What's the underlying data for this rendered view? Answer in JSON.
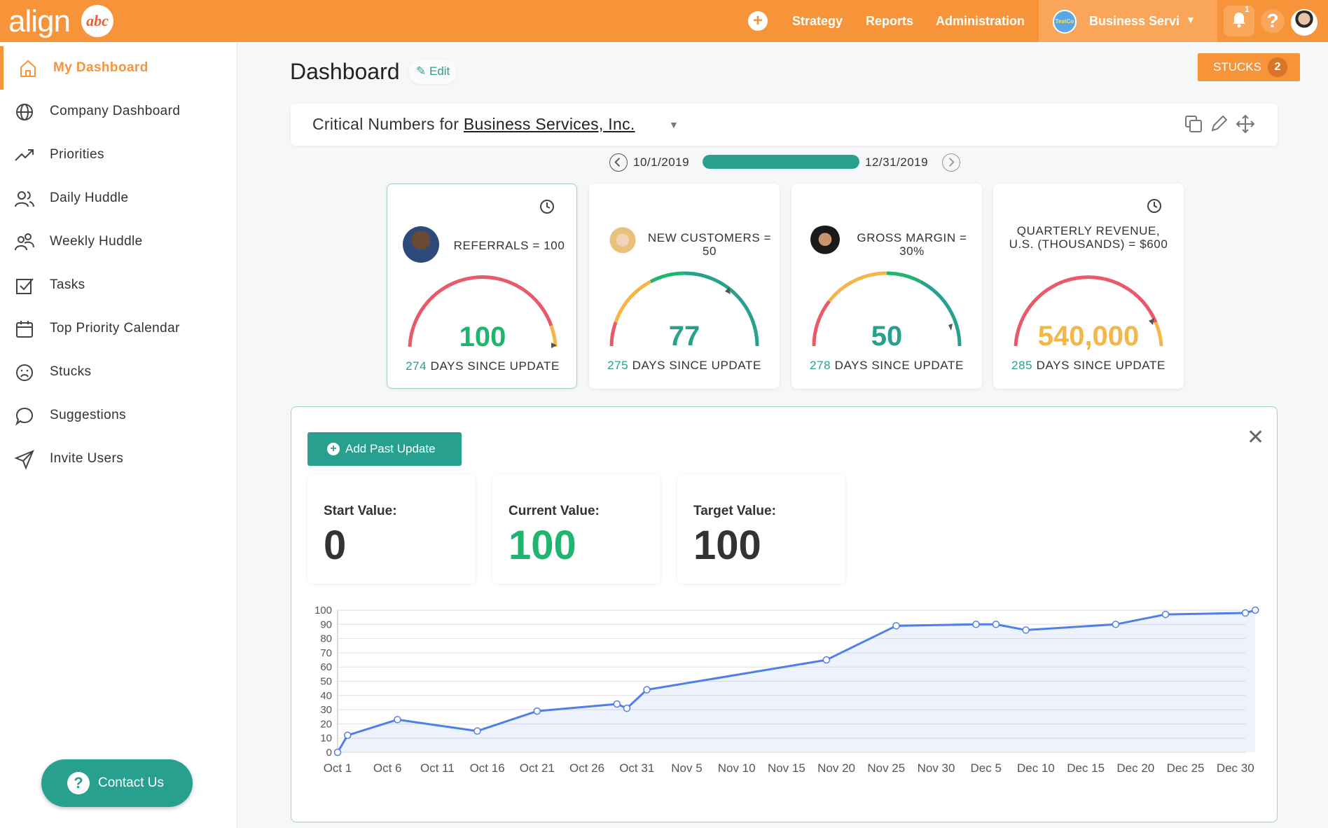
{
  "topbar": {
    "logo_text": "align",
    "logo_mark": "abc",
    "add_icon": "plus-circle-icon",
    "nav": [
      "Strategy",
      "Reports",
      "Administration"
    ],
    "company_logo_text": "TestCo",
    "company_name": "Business Services, Inc.",
    "notification_count": "1",
    "help_label": "?",
    "brand_color": "#f7943a"
  },
  "sidebar": {
    "items": [
      {
        "label": "My Dashboard",
        "icon": "home-icon",
        "active": true
      },
      {
        "label": "Company Dashboard",
        "icon": "globe-icon"
      },
      {
        "label": "Priorities",
        "icon": "trending-up-icon"
      },
      {
        "label": "Daily Huddle",
        "icon": "users-icon"
      },
      {
        "label": "Weekly Huddle",
        "icon": "users-group-icon"
      },
      {
        "label": "Tasks",
        "icon": "checkbox-icon"
      },
      {
        "label": "Top Priority Calendar",
        "icon": "calendar-icon"
      },
      {
        "label": "Stucks",
        "icon": "frown-icon"
      },
      {
        "label": "Suggestions",
        "icon": "chat-bubble-icon"
      },
      {
        "label": "Invite Users",
        "icon": "send-icon"
      }
    ],
    "contact_label": "Contact Us"
  },
  "header": {
    "title": "Dashboard",
    "edit_label": "Edit",
    "stucks_label": "STUCKS",
    "stucks_count": "2"
  },
  "critical_numbers": {
    "prefix": "Critical Numbers for ",
    "company": "Business Services, Inc.",
    "period_start": "10/1/2019",
    "period_end": "12/31/2019",
    "period_progress": 1.0
  },
  "kpis": [
    {
      "title": "REFERRALS = 100",
      "value": "100",
      "value_color": "#1fb56e",
      "days": "274",
      "footer_suffix": " DAYS SINCE UPDATE",
      "has_clock": true,
      "selected": true
    },
    {
      "title": "NEW CUSTOMERS = 50",
      "value": "77",
      "value_color": "#27a08e",
      "days": "275",
      "footer_suffix": " DAYS SINCE UPDATE",
      "has_clock": false
    },
    {
      "title": "GROSS MARGIN = 30%",
      "value": "50",
      "value_color": "#27a08e",
      "days": "278",
      "footer_suffix": " DAYS SINCE UPDATE",
      "has_clock": false
    },
    {
      "title": "QUARTERLY REVENUE, U.S. (THOUSANDS) = $600",
      "value": "540,000",
      "value_color": "#f5b547",
      "days": "285",
      "footer_suffix": " DAYS SINCE UPDATE",
      "has_clock": true
    }
  ],
  "detail": {
    "add_label": "Add Past Update",
    "start_label": "Start Value:",
    "start_value": "0",
    "current_label": "Current Value:",
    "current_value": "100",
    "target_label": "Target Value:",
    "target_value": "100"
  },
  "chart_data": {
    "type": "area",
    "title": "",
    "xlabel": "",
    "ylabel": "",
    "ylim": [
      0,
      100
    ],
    "yticks": [
      0,
      10,
      20,
      30,
      40,
      50,
      60,
      70,
      80,
      90,
      100
    ],
    "xticks": [
      "Oct 1",
      "Oct 6",
      "Oct 11",
      "Oct 16",
      "Oct 21",
      "Oct 26",
      "Oct 31",
      "Nov 5",
      "Nov 10",
      "Nov 15",
      "Nov 20",
      "Nov 25",
      "Nov 30",
      "Dec 5",
      "Dec 10",
      "Dec 15",
      "Dec 20",
      "Dec 25",
      "Dec 30"
    ],
    "grid": true,
    "series": [
      {
        "x": [
          "Oct 1",
          "Oct 2",
          "Oct 7",
          "Oct 15",
          "Oct 21",
          "Oct 29",
          "Oct 30",
          "Nov 1",
          "Nov 19",
          "Nov 26",
          "Dec 4",
          "Dec 6",
          "Dec 9",
          "Dec 18",
          "Dec 23",
          "Dec 31",
          "Jan 1"
        ],
        "y": [
          0,
          12,
          23,
          15,
          29,
          34,
          31,
          44,
          65,
          89,
          90,
          90,
          86,
          90,
          97,
          98,
          100
        ],
        "color": "#4f7fe8"
      }
    ]
  }
}
